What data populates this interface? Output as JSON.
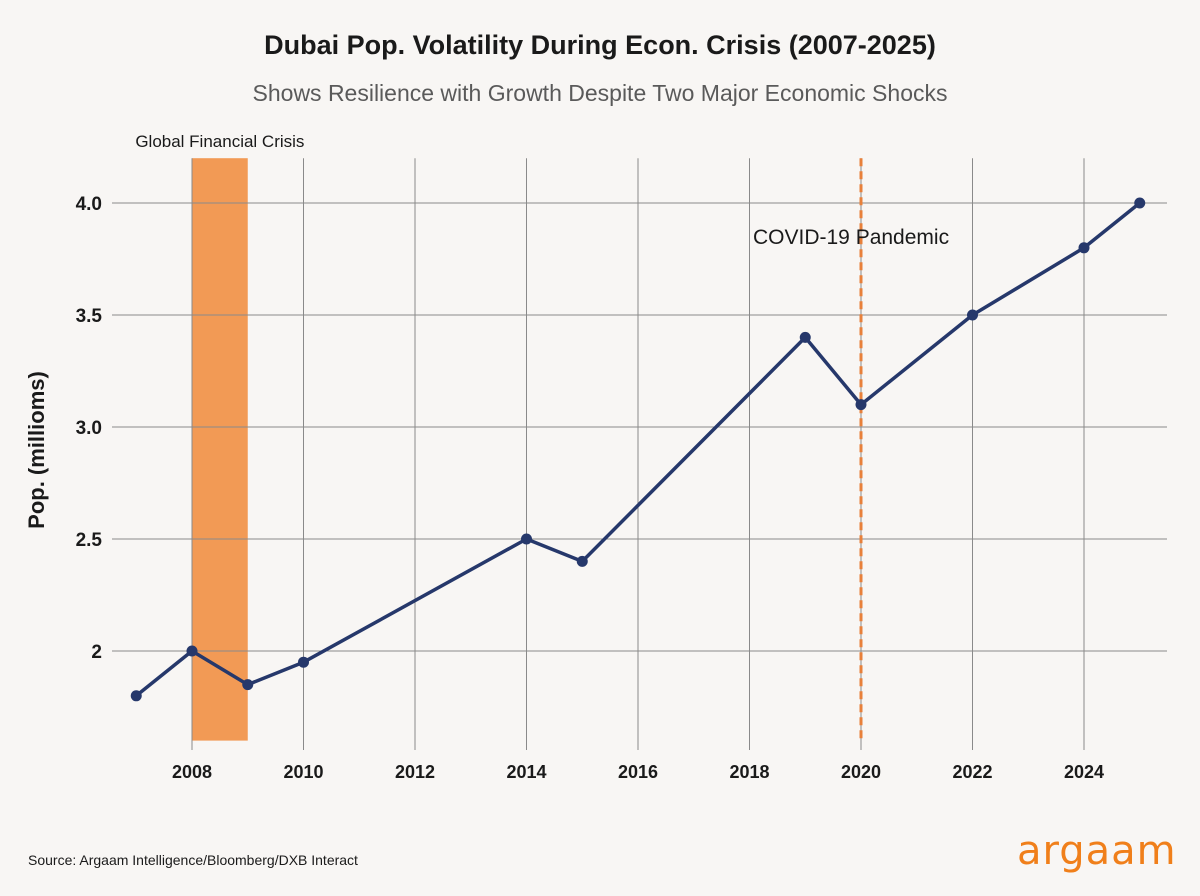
{
  "chart_data": {
    "type": "line",
    "title": "Dubai Pop. Volatility During Econ. Crisis (2007-2025)",
    "subtitle": "Shows Resilience with Growth Despite Two Major Economic Shocks",
    "xlabel": "",
    "ylabel": "Pop. (millioms)",
    "x": [
      2007,
      2008,
      2009,
      2010,
      2014,
      2015,
      2019,
      2020,
      2022,
      2024,
      2025
    ],
    "values": [
      1.8,
      2.0,
      1.85,
      1.95,
      2.5,
      2.4,
      3.4,
      3.1,
      3.5,
      3.8,
      4.0
    ],
    "xlim": [
      2006.8,
      2025.5
    ],
    "ylim": [
      1.6,
      4.2
    ],
    "xticks": [
      "2008",
      "2010",
      "2012",
      "2014",
      "2016",
      "2018",
      "2020",
      "2022",
      "2024"
    ],
    "yticks": [
      {
        "value": 2.0,
        "label": "2"
      },
      {
        "value": 2.5,
        "label": "2.5"
      },
      {
        "value": 3.0,
        "label": "3.0"
      },
      {
        "value": 3.5,
        "label": "3.5"
      },
      {
        "value": 4.0,
        "label": "4.0"
      }
    ],
    "grid": true,
    "annotations": [
      {
        "type": "span",
        "x_start": 2008,
        "x_end": 2009,
        "label": "Global Financial Crisis",
        "color": "#f29a55"
      },
      {
        "type": "vline",
        "x": 2020,
        "label": "COVID-19 Pandemic",
        "color": "#e8803a"
      }
    ],
    "line_color": "#26386b"
  },
  "footer": {
    "source": "Source: Argaam Intelligence/Bloomberg/DXB Interact",
    "logo": "argaam"
  }
}
